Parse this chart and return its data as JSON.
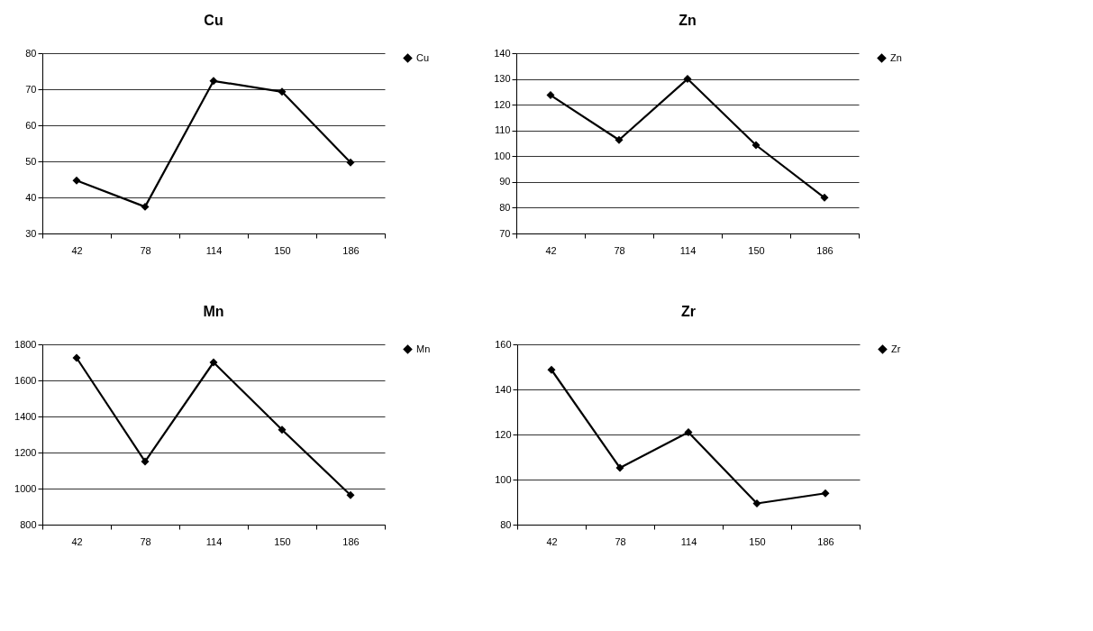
{
  "chart_data": [
    {
      "type": "line",
      "title": "Cu",
      "categories": [
        "42",
        "78",
        "114",
        "150",
        "186"
      ],
      "series": [
        {
          "name": "Cu",
          "color": "#000000",
          "values": [
            44.7,
            37.4,
            72.3,
            69.3,
            49.7
          ]
        }
      ],
      "ylim": [
        30,
        80
      ],
      "yticks": [
        30,
        40,
        50,
        60,
        70,
        80
      ],
      "grid": "y",
      "legend": "right",
      "marker": "diamond"
    },
    {
      "type": "line",
      "title": "Zn",
      "categories": [
        "42",
        "78",
        "114",
        "150",
        "186"
      ],
      "series": [
        {
          "name": "Zn",
          "color": "#000000",
          "values": [
            123.7,
            106.3,
            130,
            104.3,
            83.9
          ]
        }
      ],
      "ylim": [
        70,
        140
      ],
      "yticks": [
        70,
        80,
        90,
        100,
        110,
        120,
        130,
        140
      ],
      "grid": "y",
      "legend": "right",
      "marker": "diamond"
    },
    {
      "type": "line",
      "title": "Mn",
      "categories": [
        "42",
        "78",
        "114",
        "150",
        "186"
      ],
      "series": [
        {
          "name": "Mn",
          "color": "#000000",
          "values": [
            1725,
            1150,
            1700,
            1326,
            964
          ]
        }
      ],
      "ylim": [
        800,
        1800
      ],
      "yticks": [
        800,
        1000,
        1200,
        1400,
        1600,
        1800
      ],
      "grid": "y",
      "legend": "right",
      "marker": "diamond"
    },
    {
      "type": "line",
      "title": "Zr",
      "categories": [
        "42",
        "78",
        "114",
        "150",
        "186"
      ],
      "series": [
        {
          "name": "Zr",
          "color": "#000000",
          "values": [
            148.7,
            105.2,
            121,
            89.4,
            93.9
          ]
        }
      ],
      "ylim": [
        80,
        160
      ],
      "yticks": [
        80,
        100,
        120,
        140,
        160
      ],
      "grid": "y",
      "legend": "right",
      "marker": "diamond"
    }
  ]
}
